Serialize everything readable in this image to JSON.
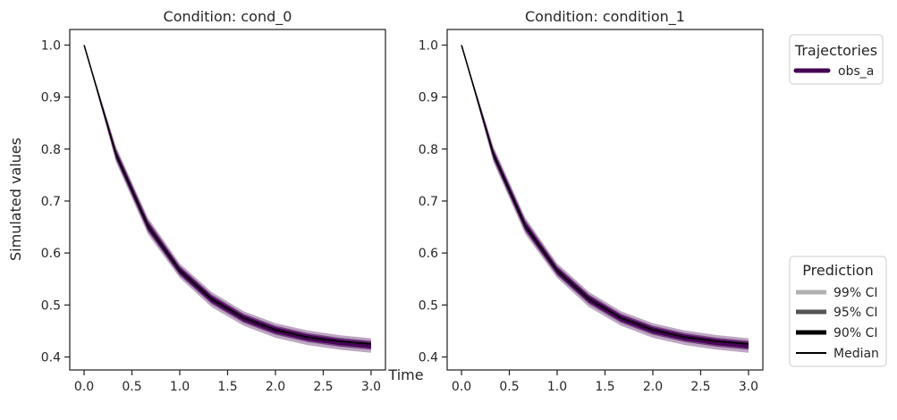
{
  "figure": {
    "ylabel": "Simulated values",
    "xlabel": "Time"
  },
  "legend_trajectories": {
    "title": "Trajectories",
    "entries": [
      {
        "label": "obs_a",
        "color": "#440154"
      }
    ]
  },
  "legend_prediction": {
    "title": "Prediction",
    "entries": [
      {
        "label": "99% CI",
        "color": "#b0b0b0"
      },
      {
        "label": "95% CI",
        "color": "#555555"
      },
      {
        "label": "90% CI",
        "color": "#000000"
      },
      {
        "label": "Median",
        "color": "#000000"
      }
    ]
  },
  "chart_data": [
    {
      "type": "line",
      "title": "Condition: cond_0",
      "xlim": [
        -0.15,
        3.15
      ],
      "ylim": [
        0.375,
        1.03
      ],
      "xticks": [
        0.0,
        0.5,
        1.0,
        1.5,
        2.0,
        2.5,
        3.0
      ],
      "xtick_labels": [
        "0.0",
        "0.5",
        "1.0",
        "1.5",
        "2.0",
        "2.5",
        "3.0"
      ],
      "yticks": [
        0.4,
        0.5,
        0.6,
        0.7,
        0.8,
        0.9,
        1.0
      ],
      "ytick_labels": [
        "0.4",
        "0.5",
        "0.6",
        "0.7",
        "0.8",
        "0.9",
        "1.0"
      ],
      "x": [
        0.0,
        0.333,
        0.667,
        1.0,
        1.333,
        1.667,
        2.0,
        2.333,
        2.667,
        3.0
      ],
      "series": [
        {
          "name": "obs_a",
          "color": "#440154",
          "median": [
            1.0,
            0.79,
            0.652,
            0.566,
            0.511,
            0.475,
            0.452,
            0.438,
            0.43,
            0.425
          ],
          "ci99_low": [
            1.0,
            0.775,
            0.636,
            0.552,
            0.496,
            0.46,
            0.437,
            0.423,
            0.414,
            0.408
          ],
          "ci99_high": [
            1.0,
            0.805,
            0.668,
            0.58,
            0.525,
            0.488,
            0.465,
            0.451,
            0.442,
            0.436
          ],
          "ci95_low": [
            1.0,
            0.78,
            0.642,
            0.557,
            0.502,
            0.466,
            0.443,
            0.429,
            0.42,
            0.414
          ],
          "ci95_high": [
            1.0,
            0.8,
            0.663,
            0.575,
            0.52,
            0.483,
            0.46,
            0.446,
            0.437,
            0.431
          ],
          "ci90_low": [
            1.0,
            0.783,
            0.645,
            0.56,
            0.505,
            0.469,
            0.446,
            0.432,
            0.423,
            0.417
          ],
          "ci90_high": [
            1.0,
            0.797,
            0.659,
            0.572,
            0.517,
            0.48,
            0.457,
            0.443,
            0.434,
            0.428
          ]
        }
      ]
    },
    {
      "type": "line",
      "title": "Condition: condition_1",
      "xlim": [
        -0.15,
        3.15
      ],
      "ylim": [
        0.375,
        1.03
      ],
      "xticks": [
        0.0,
        0.5,
        1.0,
        1.5,
        2.0,
        2.5,
        3.0
      ],
      "xtick_labels": [
        "0.0",
        "0.5",
        "1.0",
        "1.5",
        "2.0",
        "2.5",
        "3.0"
      ],
      "yticks": [
        0.4,
        0.5,
        0.6,
        0.7,
        0.8,
        0.9,
        1.0
      ],
      "ytick_labels": [
        "0.4",
        "0.5",
        "0.6",
        "0.7",
        "0.8",
        "0.9",
        "1.0"
      ],
      "x": [
        0.0,
        0.333,
        0.667,
        1.0,
        1.333,
        1.667,
        2.0,
        2.333,
        2.667,
        3.0
      ],
      "series": [
        {
          "name": "obs_a",
          "color": "#440154",
          "median": [
            1.0,
            0.79,
            0.652,
            0.566,
            0.511,
            0.475,
            0.452,
            0.438,
            0.43,
            0.425
          ],
          "ci99_low": [
            1.0,
            0.775,
            0.636,
            0.552,
            0.496,
            0.46,
            0.437,
            0.423,
            0.414,
            0.408
          ],
          "ci99_high": [
            1.0,
            0.805,
            0.668,
            0.58,
            0.525,
            0.488,
            0.465,
            0.451,
            0.442,
            0.436
          ],
          "ci95_low": [
            1.0,
            0.78,
            0.642,
            0.557,
            0.502,
            0.466,
            0.443,
            0.429,
            0.42,
            0.414
          ],
          "ci95_high": [
            1.0,
            0.8,
            0.663,
            0.575,
            0.52,
            0.483,
            0.46,
            0.446,
            0.437,
            0.431
          ],
          "ci90_low": [
            1.0,
            0.783,
            0.645,
            0.56,
            0.505,
            0.469,
            0.446,
            0.432,
            0.423,
            0.417
          ],
          "ci90_high": [
            1.0,
            0.797,
            0.659,
            0.572,
            0.517,
            0.48,
            0.457,
            0.443,
            0.434,
            0.428
          ]
        }
      ]
    }
  ]
}
